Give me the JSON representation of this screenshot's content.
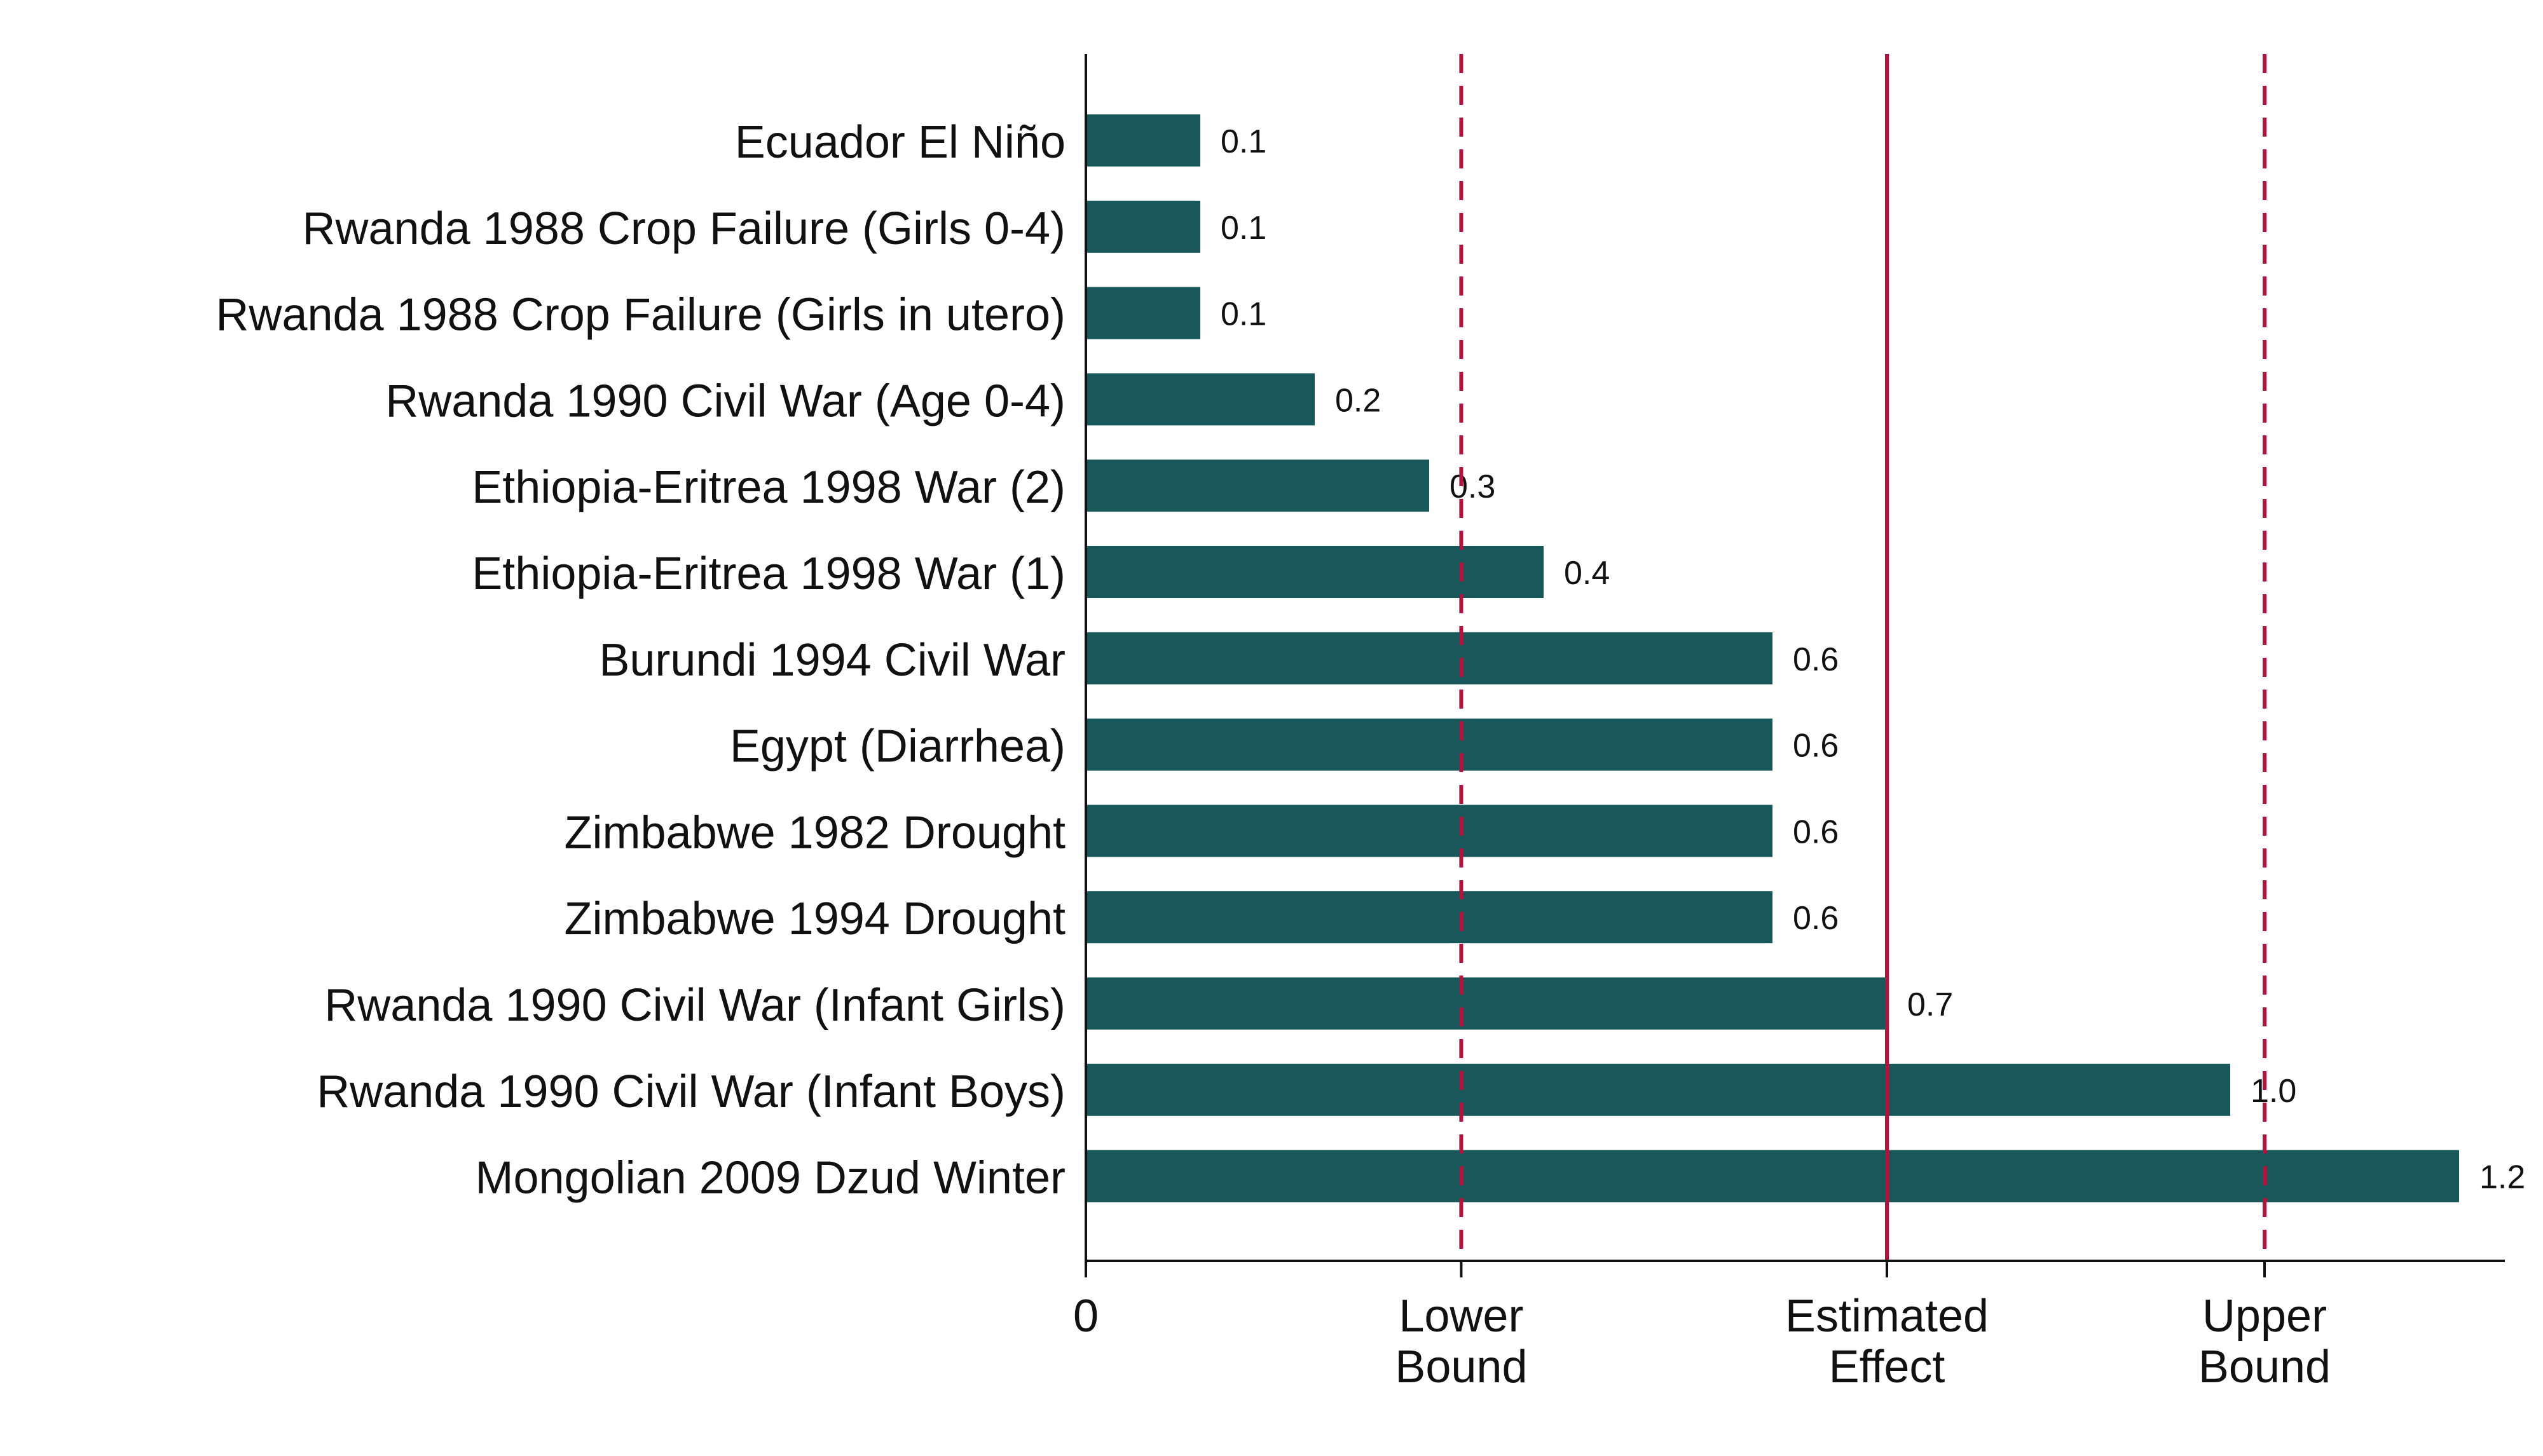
{
  "chart_data": {
    "type": "bar",
    "orientation": "horizontal",
    "categories": [
      "Ecuador El Niño",
      "Rwanda 1988 Crop Failure (Girls 0-4)",
      "Rwanda 1988 Crop Failure (Girls in utero)",
      "Rwanda 1990 Civil War (Age 0-4)",
      "Ethiopia-Eritrea 1998 War (2)",
      "Ethiopia-Eritrea 1998 War (1)",
      "Burundi 1994 Civil War",
      "Egypt (Diarrhea)",
      "Zimbabwe 1982 Drought",
      "Zimbabwe 1994 Drought",
      "Rwanda 1990 Civil War (Infant Girls)",
      "Rwanda 1990 Civil War (Infant Boys)",
      "Mongolian 2009 Dzud Winter"
    ],
    "values": [
      0.1,
      0.1,
      0.1,
      0.2,
      0.3,
      0.4,
      0.6,
      0.6,
      0.6,
      0.6,
      0.7,
      1.0,
      1.2
    ],
    "value_labels": [
      "0.1",
      "0.1",
      "0.1",
      "0.2",
      "0.3",
      "0.4",
      "0.6",
      "0.6",
      "0.6",
      "0.6",
      "0.7",
      "1.0",
      "1.2"
    ],
    "xlim": [
      0,
      1.24
    ],
    "x_ticks": [
      {
        "value": 0,
        "lines": [
          "0"
        ]
      },
      {
        "value": 0.328,
        "lines": [
          "Lower",
          "Bound"
        ]
      },
      {
        "value": 0.7,
        "lines": [
          "Estimated",
          "Effect"
        ]
      },
      {
        "value": 1.03,
        "lines": [
          "Upper",
          "Bound"
        ]
      }
    ],
    "reference_lines": [
      {
        "value": 0.328,
        "style": "dashed"
      },
      {
        "value": 0.7,
        "style": "solid"
      },
      {
        "value": 1.03,
        "style": "dashed"
      }
    ],
    "title": "",
    "xlabel": "",
    "ylabel": "",
    "grid": false,
    "legend": "none"
  },
  "colors": {
    "bar": "#18585a",
    "reference_line": "#b5123e",
    "axis": "#111111",
    "text": "#111111"
  }
}
